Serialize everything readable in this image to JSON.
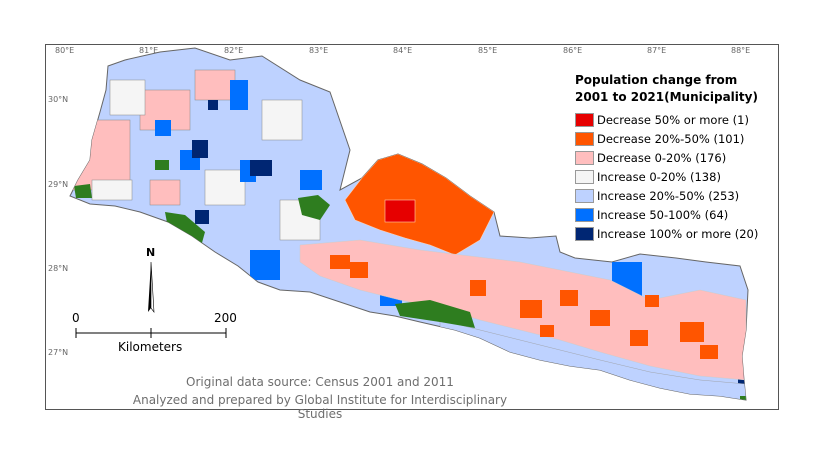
{
  "map": {
    "longitude_ticks": [
      "80°E",
      "81°E",
      "82°E",
      "83°E",
      "84°E",
      "85°E",
      "86°E",
      "87°E",
      "88°E"
    ],
    "latitude_ticks": [
      "30°N",
      "29°N",
      "28°N",
      "27°N"
    ]
  },
  "legend": {
    "title_line1": "Population change from",
    "title_line2": "2001 to 2021(Municipality)",
    "items": [
      {
        "label": "Decrease 50% or more (1)",
        "color": "#e60000"
      },
      {
        "label": "Decrease 20%-50% (101)",
        "color": "#ff5500"
      },
      {
        "label": "Decrease 0-20% (176)",
        "color": "#ffbebe"
      },
      {
        "label": "Increase 0-20% (138)",
        "color": "#f5f5f5"
      },
      {
        "label": "Increase 20%-50% (253)",
        "color": "#bed2ff"
      },
      {
        "label": "Increase 50-100% (64)",
        "color": "#0070ff"
      },
      {
        "label": "Increase 100% or more (20)",
        "color": "#002673"
      }
    ]
  },
  "scalebar": {
    "start": "0",
    "end": "200",
    "unit": "Kilometers"
  },
  "north_arrow": {
    "label": "N"
  },
  "source": {
    "line1": "Original data source: Census 2001 and 2011",
    "line2": "Analyzed and prepared by Global Institute for Interdisciplinary Studies"
  },
  "colors": {
    "protected_area": "#2e7d1f",
    "border": "#888888"
  }
}
